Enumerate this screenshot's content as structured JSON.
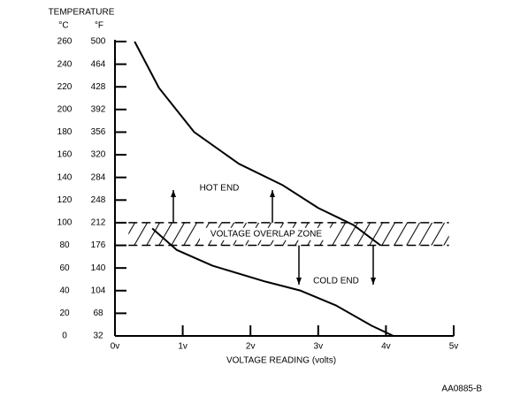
{
  "chart_data": {
    "type": "line",
    "axis_title": "TEMPERATURE",
    "y_unit": "°C",
    "y2_unit": "°F",
    "xlabel": "VOLTAGE READING (volts)",
    "xlim": [
      0,
      5
    ],
    "xticks": [
      {
        "value": 0,
        "label": "0v"
      },
      {
        "value": 1,
        "label": "1v"
      },
      {
        "value": 2,
        "label": "2v"
      },
      {
        "value": 3,
        "label": "3v"
      },
      {
        "value": 4,
        "label": "4v"
      },
      {
        "value": 5,
        "label": "5v"
      }
    ],
    "ylim": [
      0,
      260
    ],
    "yticks": [
      0,
      20,
      40,
      60,
      80,
      100,
      120,
      140,
      160,
      180,
      200,
      220,
      240,
      260
    ],
    "y2lim": [
      32,
      500
    ],
    "y2ticks": [
      32,
      68,
      104,
      140,
      176,
      212,
      248,
      284,
      320,
      356,
      392,
      428,
      464,
      500
    ],
    "series": [
      {
        "color": "#000000",
        "x": [
          0.29,
          0.65,
          1.17,
          1.83,
          2.48,
          3.0,
          3.52,
          3.92
        ],
        "values": [
          260,
          219,
          180,
          152,
          133,
          113,
          98,
          80
        ]
      },
      {
        "color": "#000000",
        "x": [
          0.55,
          0.91,
          1.44,
          2.22,
          2.74,
          3.26,
          3.79,
          4.11
        ],
        "values": [
          95,
          76,
          62,
          48,
          40,
          27,
          9,
          0
        ]
      }
    ],
    "overlap_zone": {
      "label": "VOLTAGE OVERLAP ZONE",
      "xlim": [
        0.2,
        4.93
      ],
      "ylim": [
        80,
        100
      ]
    },
    "annotations": [
      "HOT END",
      "COLD END"
    ],
    "footer": "AA0885-B"
  }
}
